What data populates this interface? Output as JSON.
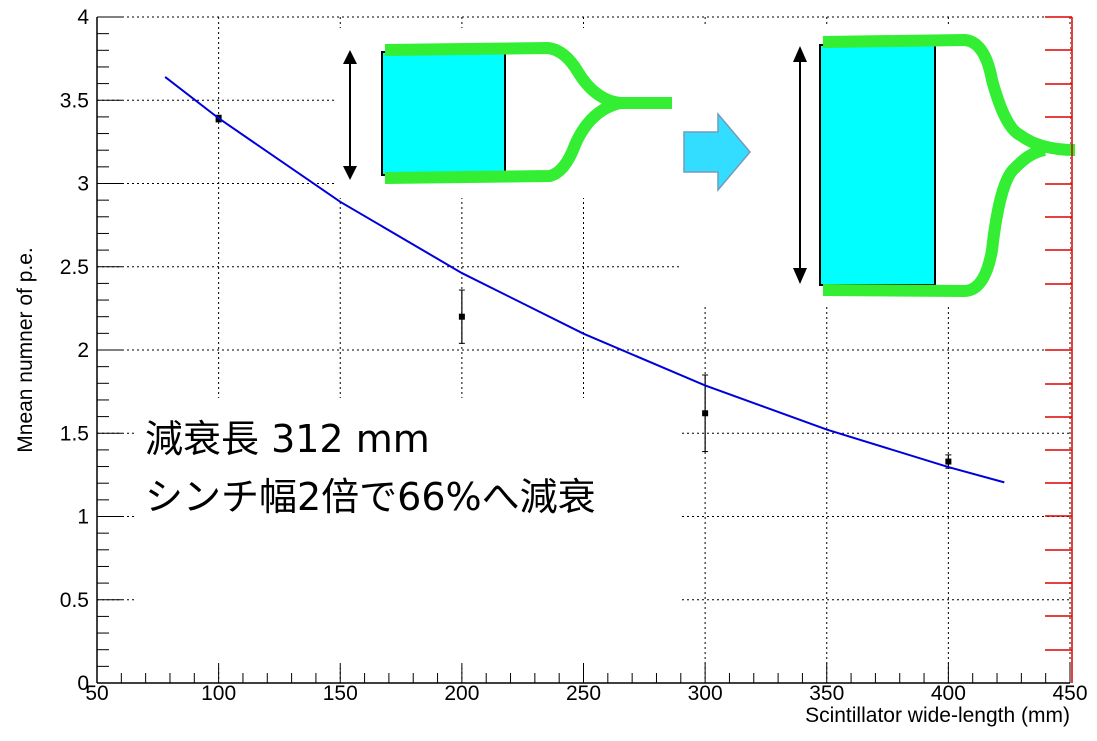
{
  "chart_data": {
    "type": "scatter",
    "x_label": "Scintillator wide-length (mm)",
    "y_label": "Mnean numner of p.e.",
    "annotations": [
      "減衰長 312 mm",
      "シンチ幅2倍で66%へ減衰"
    ],
    "xlim": [
      50,
      450
    ],
    "ylim": [
      0,
      4
    ],
    "xticks": [
      50,
      100,
      150,
      200,
      250,
      300,
      350,
      400,
      450
    ],
    "yticks": [
      0,
      0.5,
      1,
      1.5,
      2,
      2.5,
      3,
      3.5,
      4
    ],
    "grid": true,
    "series": [
      {
        "mode": "markers",
        "color": "#000000",
        "x": [
          100,
          200,
          300,
          400
        ],
        "values": [
          3.39,
          2.2,
          1.62,
          1.33
        ],
        "errors": [
          0.02,
          0.16,
          0.23,
          0.04
        ]
      },
      {
        "mode": "line",
        "color": "#0000dd",
        "x": [
          78,
          100,
          150,
          200,
          250,
          300,
          350,
          400,
          423
        ],
        "values": [
          3.64,
          3.392,
          2.89,
          2.462,
          2.098,
          1.787,
          1.522,
          1.297,
          1.205
        ]
      }
    ]
  }
}
